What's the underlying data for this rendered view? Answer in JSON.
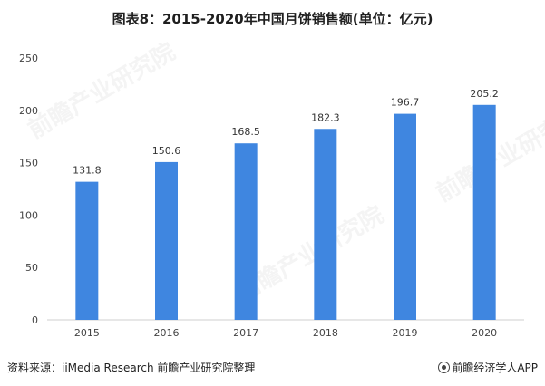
{
  "title": "图表8：2015-2020年中国月饼销售额(单位：亿元)",
  "source": "资料来源：iiMedia Research 前瞻产业研究院整理",
  "brand": "前瞻经济学人APP",
  "watermark": "前瞻产业研究院",
  "chart_data": {
    "type": "bar",
    "categories": [
      "2015",
      "2016",
      "2017",
      "2018",
      "2019",
      "2020"
    ],
    "values": [
      131.8,
      150.6,
      168.5,
      182.3,
      196.7,
      205.2
    ],
    "value_labels": [
      "131.8",
      "150.6",
      "168.5",
      "182.3",
      "196.7",
      "205.2"
    ],
    "yticks": [
      "0",
      "50",
      "100",
      "150",
      "200",
      "250"
    ],
    "ylim": [
      0,
      250
    ],
    "bar_color": "#3f86e0",
    "grid": false,
    "legend": "none"
  }
}
